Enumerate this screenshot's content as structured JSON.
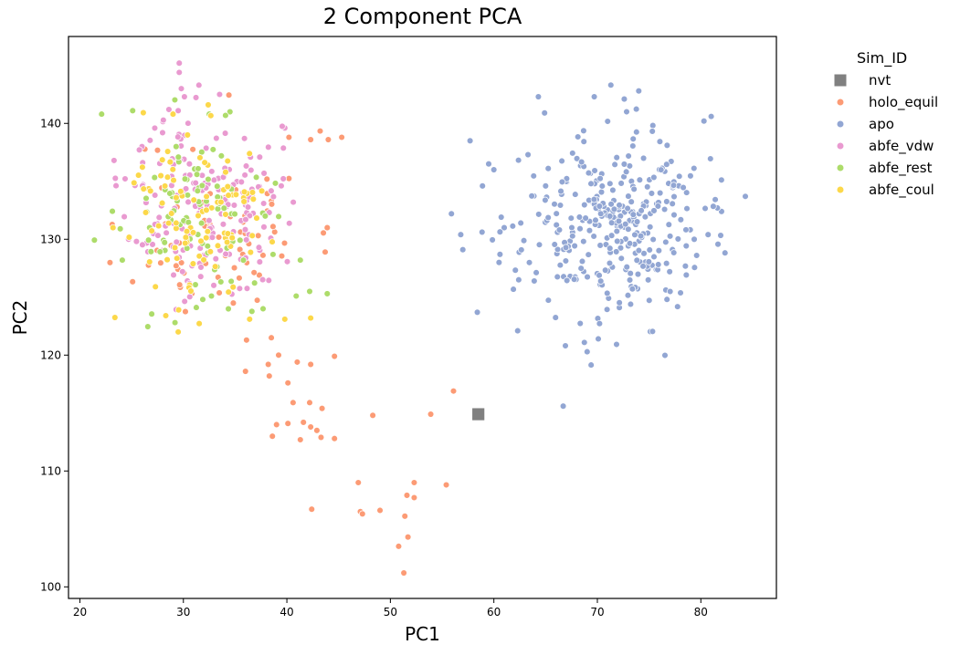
{
  "chart_data": {
    "type": "scatter",
    "title": "2 Component PCA",
    "xlabel": "PC1",
    "ylabel": "PC2",
    "xlim": [
      18.9,
      87.3
    ],
    "ylim": [
      99.0,
      147.5
    ],
    "xticks": [
      20,
      30,
      40,
      50,
      60,
      70,
      80
    ],
    "yticks": [
      100,
      110,
      120,
      130,
      140
    ],
    "grid": false,
    "legend_position": "outside right, upper",
    "legend_title": "Sim_ID",
    "series": [
      {
        "name": "nvt",
        "color": "#808080",
        "marker": "square",
        "points": [
          [
            58.5,
            114.9
          ]
        ]
      },
      {
        "name": "holo_equil",
        "color": "#fc9b75",
        "marker": "circle",
        "cluster": {
          "center": [
            33.5,
            131.0
          ],
          "sd": [
            4.2,
            4.2
          ],
          "n": 70,
          "seed": 11
        },
        "points": [
          [
            40.2,
            138.8
          ],
          [
            42.3,
            138.6
          ],
          [
            44.0,
            138.6
          ],
          [
            45.3,
            138.8
          ],
          [
            38.5,
            133.3
          ],
          [
            43.9,
            131.0
          ],
          [
            43.7,
            128.9
          ],
          [
            36.0,
            118.6
          ],
          [
            36.1,
            121.3
          ],
          [
            38.5,
            121.5
          ],
          [
            39.2,
            120.0
          ],
          [
            38.2,
            119.2
          ],
          [
            38.3,
            118.2
          ],
          [
            41.0,
            119.4
          ],
          [
            42.3,
            119.2
          ],
          [
            44.6,
            119.9
          ],
          [
            40.1,
            117.6
          ],
          [
            40.6,
            115.9
          ],
          [
            42.2,
            115.9
          ],
          [
            43.4,
            115.4
          ],
          [
            39.0,
            114.0
          ],
          [
            40.1,
            114.1
          ],
          [
            41.6,
            114.2
          ],
          [
            42.3,
            113.8
          ],
          [
            42.9,
            113.5
          ],
          [
            43.3,
            112.9
          ],
          [
            44.6,
            112.8
          ],
          [
            38.6,
            113.0
          ],
          [
            41.3,
            112.7
          ],
          [
            48.3,
            114.8
          ],
          [
            53.9,
            114.9
          ],
          [
            56.1,
            116.9
          ],
          [
            46.9,
            109.0
          ],
          [
            52.3,
            109.0
          ],
          [
            55.4,
            108.8
          ],
          [
            51.6,
            107.9
          ],
          [
            52.3,
            107.7
          ],
          [
            47.1,
            106.5
          ],
          [
            47.3,
            106.3
          ],
          [
            49.0,
            106.6
          ],
          [
            51.4,
            106.1
          ],
          [
            42.4,
            106.7
          ],
          [
            51.7,
            104.3
          ],
          [
            50.8,
            103.5
          ],
          [
            51.3,
            101.2
          ]
        ]
      },
      {
        "name": "apo",
        "color": "#92a6d3",
        "marker": "circle",
        "cluster": {
          "center": [
            71.5,
            131.0
          ],
          "sd": [
            4.3,
            4.0
          ],
          "n": 330,
          "seed": 23
        },
        "points": [
          [
            64.3,
            142.3
          ],
          [
            69.7,
            142.3
          ],
          [
            72.6,
            142.1
          ],
          [
            74.0,
            142.8
          ],
          [
            59.5,
            136.5
          ],
          [
            55.9,
            132.2
          ],
          [
            56.8,
            130.4
          ],
          [
            57.0,
            129.1
          ],
          [
            58.9,
            134.6
          ],
          [
            58.4,
            123.7
          ],
          [
            62.3,
            122.1
          ],
          [
            66.7,
            115.6
          ],
          [
            84.3,
            133.7
          ],
          [
            82.0,
            132.4
          ],
          [
            81.6,
            132.7
          ],
          [
            80.7,
            130.4
          ],
          [
            81.0,
            140.6
          ],
          [
            80.3,
            140.2
          ],
          [
            57.7,
            138.5
          ],
          [
            60.0,
            136.0
          ],
          [
            64.9,
            140.9
          ],
          [
            63.3,
            137.3
          ],
          [
            65.0,
            134.6
          ],
          [
            62.6,
            131.4
          ],
          [
            61.0,
            131.0
          ],
          [
            60.5,
            128.0
          ],
          [
            62.4,
            126.5
          ],
          [
            63.9,
            126.4
          ]
        ]
      },
      {
        "name": "abfe_vdw",
        "color": "#e99ad0",
        "marker": "circle",
        "cluster": {
          "center": [
            32.0,
            133.0
          ],
          "sd": [
            3.6,
            3.8
          ],
          "n": 190,
          "seed": 37
        },
        "points": [
          [
            29.6,
            145.2
          ],
          [
            29.6,
            144.4
          ],
          [
            29.8,
            143.0
          ],
          [
            31.5,
            143.3
          ],
          [
            33.5,
            142.5
          ],
          [
            30.1,
            142.3
          ],
          [
            29.5,
            141.1
          ],
          [
            28.6,
            141.2
          ],
          [
            23.3,
            136.8
          ],
          [
            39.8,
            139.6
          ],
          [
            26.0,
            138.0
          ],
          [
            35.9,
            138.7
          ]
        ]
      },
      {
        "name": "abfe_rest",
        "color": "#addc6a",
        "marker": "circle",
        "cluster": {
          "center": [
            31.5,
            132.0
          ],
          "sd": [
            3.8,
            4.0
          ],
          "n": 85,
          "seed": 53
        },
        "points": [
          [
            22.1,
            140.8
          ],
          [
            25.1,
            141.1
          ],
          [
            32.5,
            140.8
          ],
          [
            34.5,
            141.0
          ],
          [
            23.9,
            130.9
          ],
          [
            24.1,
            128.2
          ],
          [
            41.3,
            128.2
          ],
          [
            43.9,
            125.3
          ],
          [
            42.2,
            125.5
          ],
          [
            40.9,
            125.1
          ],
          [
            37.7,
            124.0
          ],
          [
            29.3,
            138.0
          ]
        ]
      },
      {
        "name": "abfe_coul",
        "color": "#fcd84a",
        "marker": "circle",
        "cluster": {
          "center": [
            31.5,
            131.5
          ],
          "sd": [
            3.8,
            4.0
          ],
          "n": 95,
          "seed": 71
        },
        "points": [
          [
            32.4,
            141.6
          ],
          [
            29.0,
            140.8
          ],
          [
            30.4,
            139.0
          ],
          [
            23.2,
            131.0
          ],
          [
            27.3,
            125.9
          ],
          [
            29.5,
            122.0
          ],
          [
            39.8,
            123.1
          ],
          [
            42.3,
            123.2
          ],
          [
            36.4,
            123.1
          ],
          [
            33.3,
            133.2
          ]
        ]
      }
    ]
  }
}
